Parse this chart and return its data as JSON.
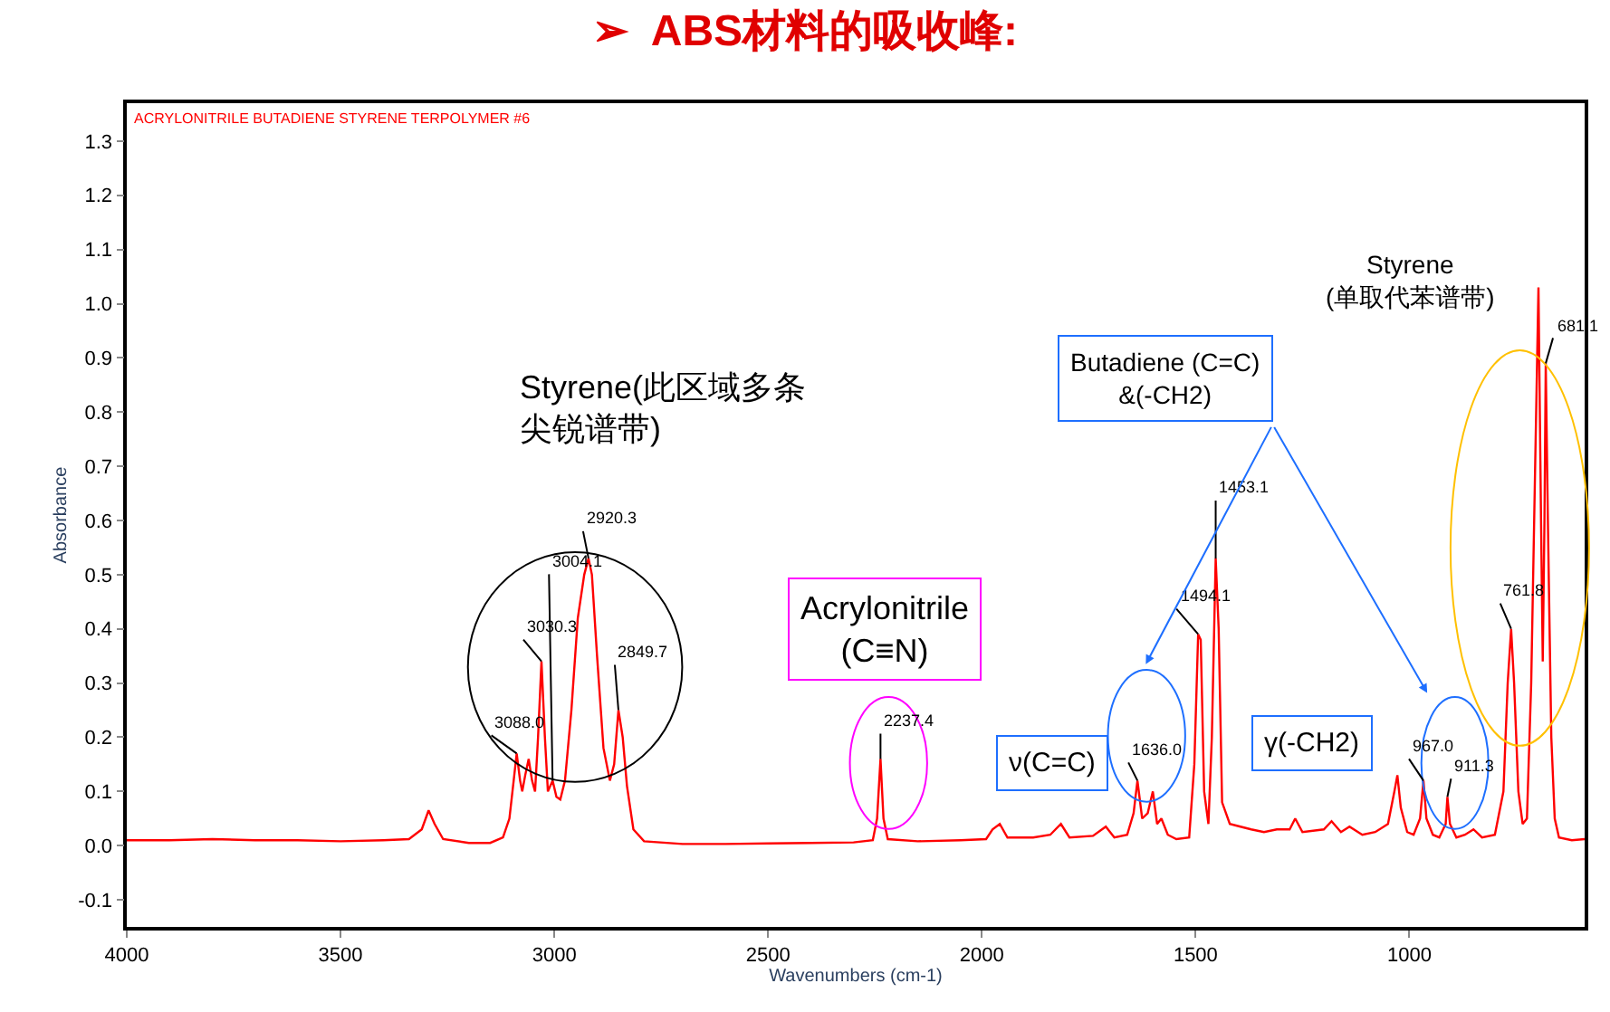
{
  "chart_data": {
    "type": "line",
    "title": "➢  ABS材料的吸收峰:",
    "subtitle": "ACRYLONITRILE BUTADIENE STYRENE TERPOLYMER #6",
    "xlabel": "Wavenumbers (cm-1)",
    "ylabel": "Absorbance",
    "x": [
      4000,
      3900,
      3800,
      3700,
      3600,
      3500,
      3400,
      3340,
      3310,
      3294,
      3280,
      3260,
      3200,
      3150,
      3120,
      3105,
      3095,
      3088,
      3080,
      3075,
      3068,
      3060,
      3052,
      3045,
      3038,
      3030,
      3022,
      3015,
      3004,
      2995,
      2986,
      2975,
      2960,
      2945,
      2930,
      2920,
      2912,
      2900,
      2885,
      2870,
      2860,
      2850,
      2840,
      2830,
      2815,
      2790,
      2700,
      2600,
      2500,
      2400,
      2300,
      2255,
      2245,
      2237,
      2230,
      2220,
      2150,
      2050,
      1990,
      1975,
      1958,
      1940,
      1880,
      1840,
      1815,
      1795,
      1740,
      1710,
      1690,
      1660,
      1645,
      1636,
      1625,
      1612,
      1600,
      1590,
      1580,
      1565,
      1545,
      1515,
      1503,
      1494,
      1488,
      1480,
      1470,
      1462,
      1453,
      1446,
      1438,
      1420,
      1395,
      1370,
      1340,
      1310,
      1280,
      1267,
      1250,
      1200,
      1182,
      1160,
      1140,
      1110,
      1080,
      1050,
      1035,
      1028,
      1020,
      1005,
      990,
      975,
      967,
      960,
      945,
      930,
      915,
      911,
      905,
      890,
      870,
      850,
      830,
      800,
      780,
      770,
      762,
      755,
      745,
      735,
      725,
      715,
      706,
      698,
      692,
      688,
      684,
      681,
      676,
      668,
      660,
      650,
      620,
      590
    ],
    "series": [
      {
        "color": "#ff0000",
        "values": [
          0.01,
          0.01,
          0.012,
          0.01,
          0.01,
          0.008,
          0.01,
          0.012,
          0.03,
          0.065,
          0.04,
          0.012,
          0.005,
          0.005,
          0.015,
          0.05,
          0.12,
          0.17,
          0.12,
          0.1,
          0.13,
          0.16,
          0.12,
          0.1,
          0.2,
          0.34,
          0.2,
          0.1,
          0.12,
          0.09,
          0.085,
          0.12,
          0.25,
          0.42,
          0.5,
          0.53,
          0.5,
          0.35,
          0.18,
          0.12,
          0.15,
          0.25,
          0.2,
          0.11,
          0.03,
          0.008,
          0.003,
          0.003,
          0.004,
          0.005,
          0.006,
          0.01,
          0.05,
          0.16,
          0.05,
          0.012,
          0.008,
          0.01,
          0.012,
          0.03,
          0.04,
          0.015,
          0.015,
          0.02,
          0.04,
          0.015,
          0.018,
          0.035,
          0.015,
          0.02,
          0.06,
          0.12,
          0.05,
          0.06,
          0.1,
          0.04,
          0.05,
          0.02,
          0.012,
          0.015,
          0.15,
          0.39,
          0.38,
          0.1,
          0.04,
          0.2,
          0.53,
          0.4,
          0.08,
          0.04,
          0.035,
          0.03,
          0.025,
          0.03,
          0.03,
          0.05,
          0.025,
          0.03,
          0.045,
          0.025,
          0.035,
          0.02,
          0.025,
          0.04,
          0.1,
          0.13,
          0.07,
          0.025,
          0.02,
          0.05,
          0.12,
          0.05,
          0.02,
          0.015,
          0.04,
          0.09,
          0.04,
          0.015,
          0.02,
          0.03,
          0.015,
          0.02,
          0.1,
          0.3,
          0.4,
          0.3,
          0.1,
          0.04,
          0.05,
          0.3,
          0.69,
          1.03,
          0.6,
          0.34,
          0.6,
          0.89,
          0.6,
          0.2,
          0.05,
          0.015,
          0.01,
          0.012
        ]
      }
    ],
    "xlim": [
      4000,
      590
    ],
    "xticks": [
      4000,
      3500,
      3000,
      2500,
      2000,
      1500,
      1000
    ],
    "ylim": [
      -0.15,
      1.37
    ],
    "yticks": [
      0.1,
      {
        "value": 0,
        "label": "0.0"
      },
      -0.1,
      0.2,
      0.3,
      0.4,
      0.5,
      0.6,
      0.7,
      0.8,
      0.9,
      {
        "value": 1,
        "label": "1.0"
      },
      1.1,
      1.2,
      1.3
    ],
    "line_style": "solid",
    "marker": "none",
    "annotations": [
      "Styrene(此区域多条",
      "尖锐谱带)",
      "Acrylonitrile\n(C≡N)",
      "ν(C=C)",
      "Butadiene (C=C)\n&(-CH2)",
      "γ(-CH2)",
      "Styrene\n(单取代苯谱带)",
      {
        "text": "3088.0",
        "x": 3088,
        "y": 0.17
      },
      {
        "text": "3030.3",
        "x": 3030,
        "y": 0.34
      },
      {
        "text": "3004.1",
        "x": 3004,
        "y": 0.12
      },
      {
        "text": "2920.3",
        "x": 2920,
        "y": 0.53
      },
      {
        "text": "2849.7",
        "x": 2850,
        "y": 0.25
      },
      {
        "text": "2237.4",
        "x": 2237,
        "y": 0.16
      },
      {
        "text": "1636.0",
        "x": 1636,
        "y": 0.12
      },
      {
        "text": "1494.1",
        "x": 1494,
        "y": 0.39
      },
      {
        "text": "1453.1",
        "x": 1453,
        "y": 0.53
      },
      {
        "text": "967.0",
        "x": 967,
        "y": 0.12
      },
      {
        "text": "911.3",
        "x": 911,
        "y": 0.09
      },
      {
        "text": "761.8",
        "x": 762,
        "y": 0.4
      },
      {
        "text": "681.1",
        "x": 681,
        "y": 0.89
      }
    ]
  }
}
